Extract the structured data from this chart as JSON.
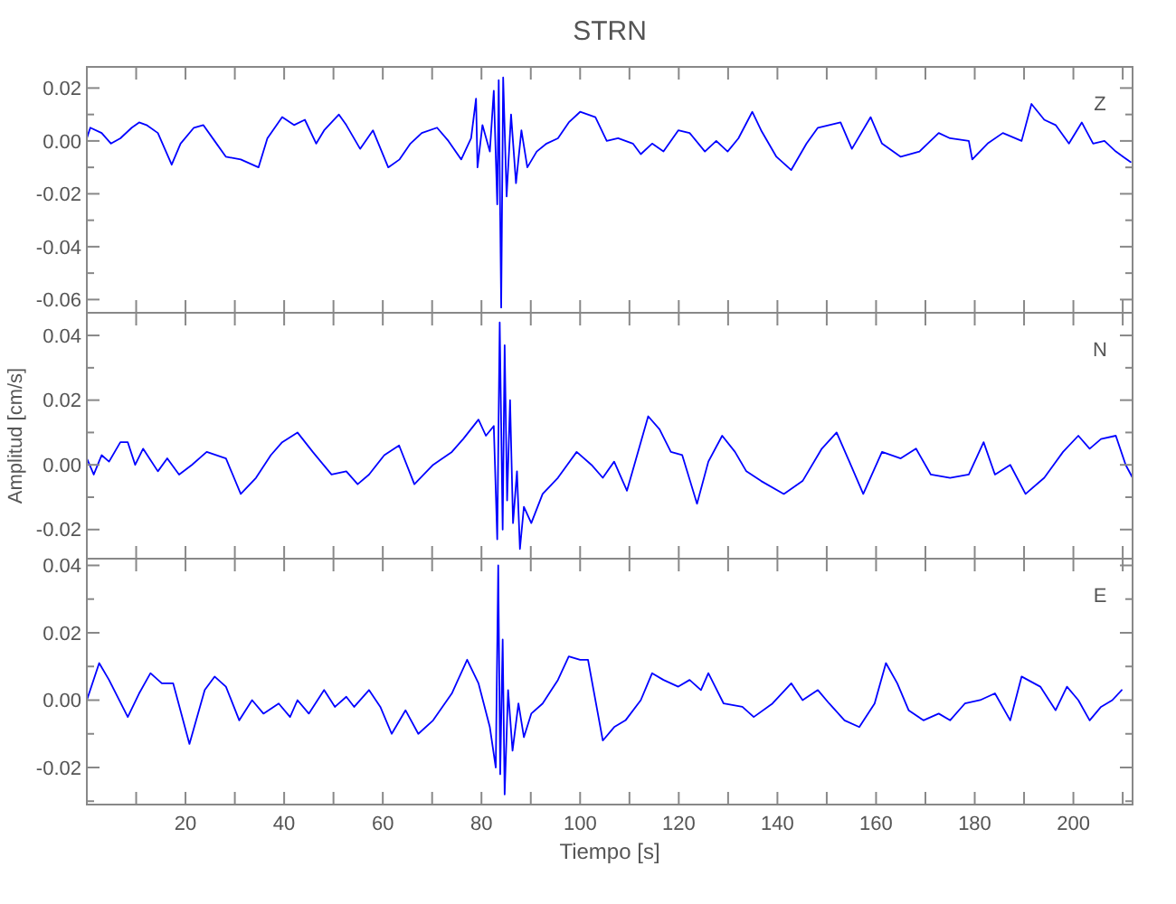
{
  "chart_data": [
    {
      "type": "line",
      "title": "STRN",
      "annotations": [
        "Z"
      ],
      "tick_labels": "y",
      "xlim": [
        0,
        212
      ],
      "ylim": [
        -0.065,
        0.028
      ],
      "xticks": [
        {
          "value": 10,
          "label": null
        },
        20,
        {
          "value": 30,
          "label": null
        },
        40,
        {
          "value": 50,
          "label": null
        },
        60,
        {
          "value": 70,
          "label": null
        },
        80,
        {
          "value": 90,
          "label": null
        },
        100,
        {
          "value": 110,
          "label": null
        },
        120,
        {
          "value": 130,
          "label": null
        },
        140,
        {
          "value": 150,
          "label": null
        },
        160,
        {
          "value": 170,
          "label": null
        },
        180,
        {
          "value": 190,
          "label": null
        },
        200,
        {
          "value": 210,
          "label": null
        }
      ],
      "yticks": [
        -0.06,
        {
          "value": -0.05,
          "label": null
        },
        -0.04,
        {
          "value": -0.03,
          "label": null
        },
        -0.02,
        {
          "value": -0.01,
          "label": null
        },
        {
          "value": 0,
          "label": "0.00"
        },
        {
          "value": 0.01,
          "label": null
        },
        0.02
      ],
      "x": [
        0,
        0.7,
        3.0,
        4.9,
        6.8,
        9.1,
        10.6,
        12.1,
        14.4,
        17.2,
        19.0,
        21.7,
        23.6,
        25.9,
        28.2,
        31.2,
        34.8,
        36.6,
        39.6,
        42.0,
        44.2,
        46.5,
        48.1,
        51.1,
        52.6,
        55.4,
        58.0,
        61.1,
        63.4,
        65.6,
        67.9,
        71.0,
        73.3,
        75.9,
        77.9,
        78.9,
        79.2,
        80.2,
        81.7,
        82.5,
        83.2,
        83.5,
        84.0,
        84.4,
        85.1,
        86.0,
        87.0,
        88.1,
        89.3,
        91.2,
        93.2,
        95.5,
        97.7,
        100.0,
        103.1,
        105.4,
        107.7,
        110.7,
        112.3,
        114.6,
        116.9,
        119.9,
        122.2,
        125.3,
        127.6,
        129.9,
        132.1,
        134.9,
        136.7,
        139.8,
        142.8,
        145.9,
        148.2,
        150.5,
        152.8,
        155.1,
        158.9,
        161.2,
        165.0,
        168.8,
        172.7,
        175.0,
        178.8,
        179.5,
        182.6,
        185.7,
        189.5,
        191.5,
        194.1,
        196.4,
        199.1,
        201.7,
        204.0,
        206.3,
        208.6,
        210.1,
        211.6
      ],
      "series": [
        {
          "color": "#0000ff",
          "values": [
            0.001,
            0.005,
            0.003,
            -0.001,
            0.001,
            0.005,
            0.007,
            0.006,
            0.003,
            -0.009,
            -0.001,
            0.005,
            0.006,
            0,
            -0.006,
            -0.007,
            -0.01,
            0.001,
            0.009,
            0.006,
            0.008,
            -0.001,
            0.004,
            0.01,
            0.006,
            -0.003,
            0.004,
            -0.01,
            -0.007,
            -0.001,
            0.003,
            0.005,
            0,
            -0.007,
            0.001,
            0.016,
            -0.01,
            0.006,
            -0.004,
            0.019,
            -0.024,
            0.023,
            -0.063,
            0.024,
            -0.021,
            0.01,
            -0.016,
            0.004,
            -0.01,
            -0.004,
            -0.001,
            0.001,
            0.007,
            0.011,
            0.009,
            0,
            0.001,
            -0.001,
            -0.005,
            -0.001,
            -0.004,
            0.004,
            0.003,
            -0.004,
            0,
            -0.004,
            0.001,
            0.011,
            0.004,
            -0.006,
            -0.011,
            -0.001,
            0.005,
            0.006,
            0.007,
            -0.003,
            0.009,
            -0.001,
            -0.006,
            -0.004,
            0.003,
            0.001,
            0,
            -0.007,
            -0.001,
            0.003,
            0,
            0.014,
            0.008,
            0.006,
            -0.001,
            0.007,
            -0.001,
            0,
            -0.004,
            -0.006,
            -0.008
          ]
        }
      ]
    },
    {
      "type": "line",
      "ylabel": "Amplitud [cm/s]",
      "annotations": [
        "N"
      ],
      "tick_labels": "y",
      "xlim": [
        0,
        212
      ],
      "ylim": [
        -0.029,
        0.047
      ],
      "xticks": [
        {
          "value": 10,
          "label": null
        },
        20,
        {
          "value": 30,
          "label": null
        },
        40,
        {
          "value": 50,
          "label": null
        },
        60,
        {
          "value": 70,
          "label": null
        },
        80,
        {
          "value": 90,
          "label": null
        },
        100,
        {
          "value": 110,
          "label": null
        },
        120,
        {
          "value": 130,
          "label": null
        },
        140,
        {
          "value": 150,
          "label": null
        },
        160,
        {
          "value": 170,
          "label": null
        },
        180,
        {
          "value": 190,
          "label": null
        },
        200,
        {
          "value": 210,
          "label": null
        }
      ],
      "yticks": [
        -0.02,
        {
          "value": -0.01,
          "label": null
        },
        {
          "value": 0,
          "label": "0.00"
        },
        {
          "value": 0.01,
          "label": null
        },
        0.02,
        {
          "value": 0.03,
          "label": null
        },
        0.04
      ],
      "x": [
        0,
        1.4,
        3.0,
        4.5,
        6.8,
        8.3,
        9.8,
        11.4,
        14.4,
        16.3,
        18.7,
        21.3,
        24.3,
        28.2,
        31.2,
        34.3,
        37.3,
        39.6,
        42.7,
        45.8,
        49.6,
        52.6,
        54.9,
        57.2,
        60.3,
        63.3,
        66.4,
        70.2,
        74.0,
        76.3,
        79.4,
        80.9,
        82.5,
        83.2,
        83.7,
        84.3,
        84.7,
        85.2,
        85.8,
        86.4,
        87.2,
        87.8,
        88.6,
        90.1,
        92.4,
        95.5,
        99.3,
        102.3,
        104.6,
        106.9,
        109.5,
        113.8,
        116.1,
        118.4,
        120.7,
        123.7,
        126.0,
        128.8,
        131.4,
        133.7,
        136.7,
        141.3,
        145.1,
        149.0,
        152.0,
        154.3,
        157.4,
        161.2,
        165.0,
        168.1,
        171.1,
        175.0,
        178.8,
        181.8,
        184.1,
        187.2,
        190.3,
        194.1,
        197.9,
        201.0,
        203.3,
        205.6,
        208.6,
        210.6,
        212
      ],
      "series": [
        {
          "color": "#0000ff",
          "values": [
            0.002,
            -0.003,
            0.003,
            0.001,
            0.007,
            0.007,
            0,
            0.005,
            -0.002,
            0.002,
            -0.003,
            0,
            0.004,
            0.002,
            -0.009,
            -0.004,
            0.003,
            0.007,
            0.01,
            0.004,
            -0.003,
            -0.002,
            -0.006,
            -0.003,
            0.003,
            0.006,
            -0.006,
            0,
            0.004,
            0.008,
            0.014,
            0.009,
            0.012,
            -0.023,
            0.044,
            -0.02,
            0.037,
            -0.011,
            0.02,
            -0.018,
            -0.002,
            -0.026,
            -0.013,
            -0.018,
            -0.009,
            -0.004,
            0.004,
            0,
            -0.004,
            0.001,
            -0.008,
            0.015,
            0.011,
            0.004,
            0.003,
            -0.012,
            0.001,
            0.009,
            0.004,
            -0.002,
            -0.005,
            -0.009,
            -0.005,
            0.005,
            0.01,
            0.002,
            -0.009,
            0.004,
            0.002,
            0.005,
            -0.003,
            -0.004,
            -0.003,
            0.007,
            -0.003,
            0,
            -0.009,
            -0.004,
            0.004,
            0.009,
            0.005,
            0.008,
            0.009,
            0,
            -0.004
          ]
        }
      ]
    },
    {
      "type": "line",
      "xlabel": "Tiempo [s]",
      "annotations": [
        "E"
      ],
      "xlim": [
        0,
        212
      ],
      "ylim": [
        -0.031,
        0.042
      ],
      "xticks": [
        {
          "value": 10,
          "label": null
        },
        20,
        {
          "value": 30,
          "label": null
        },
        40,
        {
          "value": 50,
          "label": null
        },
        60,
        {
          "value": 70,
          "label": null
        },
        80,
        {
          "value": 90,
          "label": null
        },
        100,
        {
          "value": 110,
          "label": null
        },
        120,
        {
          "value": 130,
          "label": null
        },
        140,
        {
          "value": 150,
          "label": null
        },
        160,
        {
          "value": 170,
          "label": null
        },
        180,
        {
          "value": 190,
          "label": null
        },
        200,
        {
          "value": 210,
          "label": null
        }
      ],
      "yticks": [
        {
          "value": -0.03,
          "label": null
        },
        -0.02,
        {
          "value": -0.01,
          "label": null
        },
        {
          "value": 0,
          "label": "0.00"
        },
        {
          "value": 0.01,
          "label": null
        },
        0.02,
        {
          "value": 0.03,
          "label": null
        },
        0.04
      ],
      "x": [
        0,
        2.5,
        4.5,
        8.3,
        10.6,
        12.9,
        15.2,
        17.5,
        20.8,
        23.9,
        25.9,
        28.2,
        30.9,
        33.5,
        35.8,
        38.9,
        41.2,
        42.7,
        45.0,
        48.1,
        50.3,
        52.6,
        54.2,
        57.2,
        59.5,
        61.8,
        64.6,
        67.2,
        70.2,
        74.0,
        77.1,
        79.4,
        81.7,
        82.9,
        83.4,
        83.8,
        84.3,
        84.7,
        85.4,
        86.3,
        87.5,
        88.6,
        90.1,
        92.4,
        95.5,
        97.7,
        100.0,
        101.6,
        104.6,
        106.9,
        109.2,
        112.3,
        114.6,
        116.9,
        119.9,
        122.2,
        124.5,
        126.0,
        129.1,
        132.9,
        135.2,
        139.0,
        142.8,
        145.1,
        148.2,
        150.5,
        153.6,
        156.6,
        159.7,
        162.0,
        164.3,
        166.6,
        169.6,
        172.7,
        175.0,
        178.0,
        181.1,
        184.1,
        187.2,
        189.5,
        193.3,
        196.4,
        198.7,
        201.0,
        203.3,
        205.6,
        207.9,
        209.8
      ],
      "series": [
        {
          "color": "#0000ff",
          "values": [
            0,
            0.011,
            0.006,
            -0.005,
            0.002,
            0.008,
            0.005,
            0.005,
            -0.013,
            0.003,
            0.007,
            0.004,
            -0.006,
            0,
            -0.004,
            -0.001,
            -0.005,
            0,
            -0.004,
            0.003,
            -0.002,
            0.001,
            -0.002,
            0.003,
            -0.002,
            -0.01,
            -0.003,
            -0.01,
            -0.006,
            0.002,
            0.012,
            0.005,
            -0.008,
            -0.02,
            0.04,
            -0.022,
            0.018,
            -0.028,
            0.003,
            -0.015,
            -0.001,
            -0.011,
            -0.004,
            -0.001,
            0.006,
            0.013,
            0.012,
            0.012,
            -0.012,
            -0.008,
            -0.006,
            0,
            0.008,
            0.006,
            0.004,
            0.006,
            0.003,
            0.008,
            -0.001,
            -0.002,
            -0.005,
            -0.001,
            0.005,
            0,
            0.003,
            -0.001,
            -0.006,
            -0.008,
            -0.001,
            0.011,
            0.005,
            -0.003,
            -0.006,
            -0.004,
            -0.006,
            -0.001,
            0,
            0.002,
            -0.006,
            0.007,
            0.004,
            -0.003,
            0.004,
            0,
            -0.006,
            -0.002,
            0,
            0.003
          ]
        }
      ]
    }
  ]
}
